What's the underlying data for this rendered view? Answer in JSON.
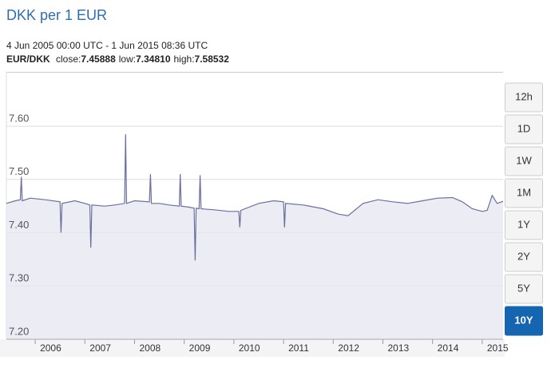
{
  "chart_data": {
    "type": "area",
    "title": "DKK per 1 EUR",
    "subtitle": "4 Jun 2005 00:00 UTC - 1 Jun 2015 08:36 UTC",
    "stats": {
      "pair": "EUR/DKK",
      "items": [
        {
          "label": "close:",
          "value": "7.45888"
        },
        {
          "label": "low:",
          "value": "7.34810"
        },
        {
          "label": "high:",
          "value": "7.58532"
        }
      ]
    },
    "ranges": [
      "12h",
      "1D",
      "1W",
      "1M",
      "1Y",
      "2Y",
      "5Y",
      "10Y"
    ],
    "selected_range": 7,
    "x": [
      2005.42,
      2005.6,
      2005.7,
      2005.72,
      2005.74,
      2005.9,
      2006.2,
      2006.5,
      2006.52,
      2006.54,
      2006.8,
      2007.0,
      2007.1,
      2007.12,
      2007.14,
      2007.4,
      2007.6,
      2007.8,
      2007.82,
      2007.84,
      2008.0,
      2008.3,
      2008.32,
      2008.34,
      2008.5,
      2008.7,
      2008.9,
      2008.92,
      2008.94,
      2009.1,
      2009.2,
      2009.22,
      2009.24,
      2009.3,
      2009.32,
      2009.34,
      2009.6,
      2009.9,
      2010.1,
      2010.12,
      2010.14,
      2010.5,
      2010.8,
      2011.0,
      2011.02,
      2011.04,
      2011.4,
      2011.8,
      2012.1,
      2012.3,
      2012.6,
      2012.9,
      2013.2,
      2013.5,
      2013.8,
      2014.1,
      2014.4,
      2014.6,
      2014.8,
      2015.0,
      2015.1,
      2015.2,
      2015.3,
      2015.42
    ],
    "series": [
      {
        "name": "EUR/DKK",
        "color": "#6b6f9e",
        "fill": "#e6e7f1",
        "values": [
          7.455,
          7.46,
          7.462,
          7.505,
          7.46,
          7.465,
          7.462,
          7.458,
          7.4,
          7.455,
          7.46,
          7.455,
          7.452,
          7.372,
          7.452,
          7.45,
          7.452,
          7.455,
          7.585,
          7.455,
          7.46,
          7.458,
          7.51,
          7.455,
          7.455,
          7.452,
          7.45,
          7.51,
          7.45,
          7.448,
          7.446,
          7.348,
          7.446,
          7.445,
          7.508,
          7.445,
          7.443,
          7.44,
          7.44,
          7.41,
          7.442,
          7.455,
          7.46,
          7.458,
          7.41,
          7.455,
          7.452,
          7.445,
          7.435,
          7.432,
          7.455,
          7.462,
          7.458,
          7.455,
          7.46,
          7.465,
          7.466,
          7.458,
          7.445,
          7.44,
          7.442,
          7.47,
          7.455,
          7.45888
        ]
      }
    ],
    "xlim": [
      2005.42,
      2015.42
    ],
    "xticks": [
      2006,
      2007,
      2008,
      2009,
      2010,
      2011,
      2012,
      2013,
      2014,
      2015
    ],
    "ylim": [
      7.2,
      7.702
    ],
    "yticks": [
      {
        "value": 7.2,
        "label": "7.20"
      },
      {
        "value": 7.3,
        "label": "7.30"
      },
      {
        "value": 7.4,
        "label": "7.40"
      },
      {
        "value": 7.5,
        "label": "7.50"
      },
      {
        "value": 7.6,
        "label": "7.60"
      }
    ],
    "grid": true
  }
}
